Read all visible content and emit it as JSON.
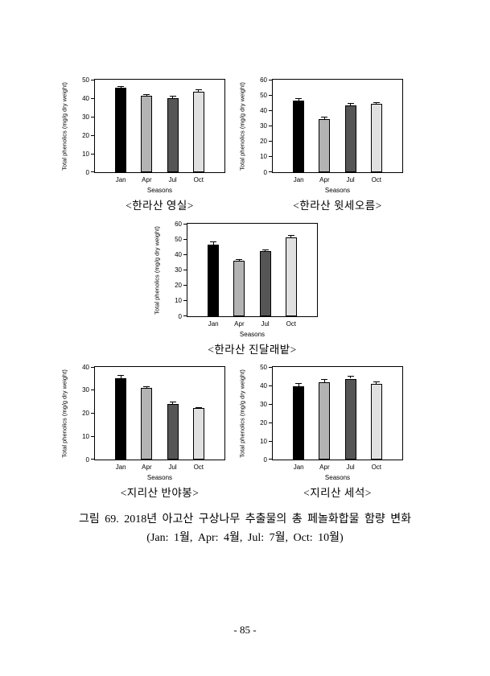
{
  "document": {
    "figure_caption_line1": "그림 69. 2018년 아고산 구상나무 추출물의 총 페놀화합물 함량 변화",
    "figure_caption_line2": "(Jan: 1월, Apr: 4월, Jul: 7월, Oct: 10월)",
    "page_number": "- 85 -"
  },
  "colors": {
    "background": "#ffffff",
    "axis": "#000000",
    "bar_fill_by_season": [
      "#000000",
      "#b3b3b3",
      "#555555",
      "#e0e0e0"
    ]
  },
  "chart_data": [
    {
      "type": "bar",
      "name": "hallasan-yeongsil",
      "title": "<한라산 영실>",
      "categories": [
        "Jan",
        "Apr",
        "Jul",
        "Oct"
      ],
      "values": [
        45.5,
        41.2,
        40.1,
        43.5
      ],
      "errors": [
        1.2,
        1.0,
        1.3,
        1.4
      ],
      "xlabel": "Seasons",
      "ylabel": "Total phenolics (mg/g dry weight)",
      "ylim": [
        0,
        50
      ],
      "ytick_step": 10,
      "grid": false,
      "legend": "none",
      "error_bars": "upper"
    },
    {
      "type": "bar",
      "name": "hallasan-witseoreum",
      "title": "<한라산 윗세오름>",
      "categories": [
        "Jan",
        "Apr",
        "Jul",
        "Oct"
      ],
      "values": [
        46.2,
        34.3,
        43.2,
        44.5
      ],
      "errors": [
        2.0,
        1.6,
        1.5,
        0.8
      ],
      "xlabel": "Seasons",
      "ylabel": "Total phenolics (mg/g dry weight)",
      "ylim": [
        0,
        60
      ],
      "ytick_step": 10,
      "grid": false,
      "legend": "none",
      "error_bars": "upper"
    },
    {
      "type": "bar",
      "name": "hallasan-jindallaebat",
      "title": "<한라산 진달래밭>",
      "categories": [
        "Jan",
        "Apr",
        "Jul",
        "Oct"
      ],
      "values": [
        46.5,
        35.8,
        42.2,
        51.0
      ],
      "errors": [
        2.0,
        1.0,
        1.2,
        1.8
      ],
      "xlabel": "Seasons",
      "ylabel": "Total phenolics (mg/g dry weight)",
      "ylim": [
        0,
        60
      ],
      "ytick_step": 10,
      "grid": false,
      "legend": "none",
      "error_bars": "upper"
    },
    {
      "type": "bar",
      "name": "jirisan-banyabong",
      "title": "<지리산 반야봉>",
      "categories": [
        "Jan",
        "Apr",
        "Jul",
        "Oct"
      ],
      "values": [
        35.2,
        31.1,
        24.1,
        22.2
      ],
      "errors": [
        1.3,
        0.5,
        0.9,
        0.4
      ],
      "xlabel": "Seasons",
      "ylabel": "Total phenolics (mg/g dry weight)",
      "ylim": [
        0,
        40
      ],
      "ytick_step": 10,
      "grid": false,
      "legend": "none",
      "error_bars": "upper"
    },
    {
      "type": "bar",
      "name": "jirisan-seseok",
      "title": "<지리산 세석>",
      "categories": [
        "Jan",
        "Apr",
        "Jul",
        "Oct"
      ],
      "values": [
        39.5,
        41.7,
        43.7,
        41.0
      ],
      "errors": [
        1.9,
        1.6,
        1.4,
        1.2
      ],
      "xlabel": "Seasons",
      "ylabel": "Total phenolics (mg/g dry weight)",
      "ylim": [
        0,
        50
      ],
      "ytick_step": 10,
      "grid": false,
      "legend": "none",
      "error_bars": "upper"
    }
  ]
}
